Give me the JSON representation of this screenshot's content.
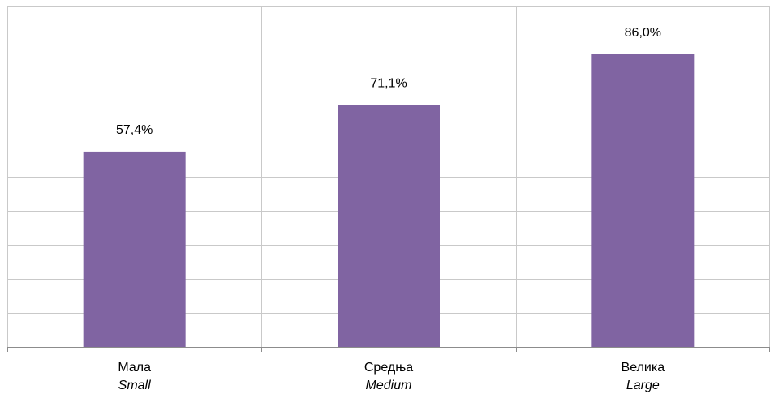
{
  "chart_data": {
    "type": "bar",
    "categories": [
      "Мала",
      "Средња",
      "Велика"
    ],
    "categories_secondary": [
      "Small",
      "Medium",
      "Large"
    ],
    "values": [
      57.4,
      71.1,
      86.0
    ],
    "value_labels": [
      "57,4%",
      "71,1%",
      "86,0%"
    ],
    "ylim": [
      0,
      100
    ],
    "y_grid_step": 10,
    "grid": true,
    "vertical_grid": true,
    "bar_color": "#8064a2",
    "title": "",
    "xlabel": "",
    "ylabel": ""
  }
}
